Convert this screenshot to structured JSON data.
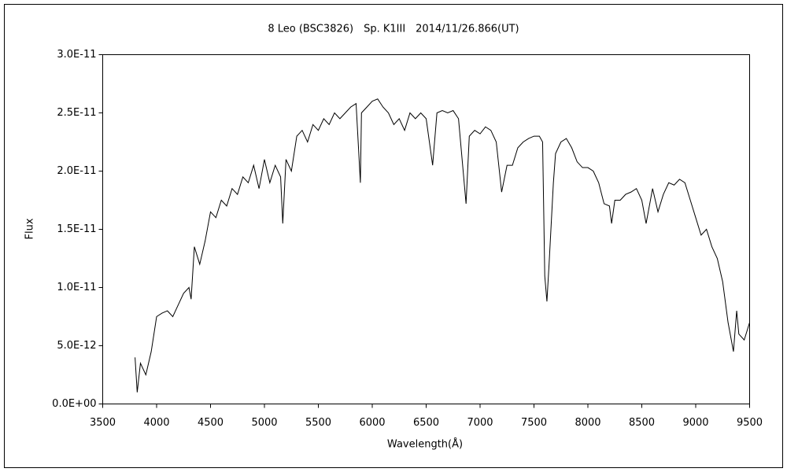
{
  "chart_data": {
    "type": "line",
    "title": "8 Leo (BSC3826)　Sp. K1III　2014/11/26.866(UT)",
    "x_label": "Wavelength(Å)",
    "y_label": "Flux",
    "xlim": [
      3500,
      9500
    ],
    "xticks": [
      3500,
      4000,
      4500,
      5000,
      5500,
      6000,
      6500,
      7000,
      7500,
      8000,
      8500,
      9000,
      9500
    ],
    "ylim": [
      0,
      3e-11
    ],
    "yticks": [
      {
        "value": 0,
        "label": "0.0E+00"
      },
      {
        "value": 5e-12,
        "label": "5.0E-12"
      },
      {
        "value": 1e-11,
        "label": "1.0E-11"
      },
      {
        "value": 1.5e-11,
        "label": "1.5E-11"
      },
      {
        "value": 2e-11,
        "label": "2.0E-11"
      },
      {
        "value": 2.5e-11,
        "label": "2.5E-11"
      },
      {
        "value": 3e-11,
        "label": "3.0E-11"
      }
    ],
    "grid": false,
    "x": [
      3800,
      3820,
      3850,
      3900,
      3950,
      4000,
      4050,
      4100,
      4150,
      4200,
      4250,
      4300,
      4320,
      4350,
      4400,
      4450,
      4500,
      4550,
      4600,
      4650,
      4700,
      4750,
      4800,
      4850,
      4900,
      4950,
      5000,
      5050,
      5100,
      5150,
      5170,
      5200,
      5250,
      5300,
      5350,
      5400,
      5450,
      5500,
      5550,
      5600,
      5650,
      5700,
      5750,
      5800,
      5850,
      5890,
      5900,
      5950,
      6000,
      6050,
      6100,
      6150,
      6200,
      6250,
      6300,
      6350,
      6400,
      6450,
      6500,
      6560,
      6600,
      6650,
      6700,
      6750,
      6800,
      6870,
      6900,
      6950,
      7000,
      7050,
      7100,
      7150,
      7200,
      7250,
      7300,
      7350,
      7400,
      7450,
      7500,
      7550,
      7580,
      7600,
      7620,
      7640,
      7680,
      7700,
      7750,
      7800,
      7850,
      7900,
      7950,
      8000,
      8050,
      8100,
      8150,
      8200,
      8220,
      8250,
      8300,
      8350,
      8400,
      8450,
      8500,
      8540,
      8600,
      8650,
      8700,
      8750,
      8800,
      8850,
      8900,
      8950,
      9000,
      9050,
      9100,
      9150,
      9200,
      9250,
      9300,
      9350,
      9380,
      9400,
      9450,
      9500
    ],
    "series": [
      {
        "name": "Flux",
        "color": "#000000",
        "values": [
          4e-12,
          1e-12,
          3.5e-12,
          2.5e-12,
          4.5e-12,
          7.5e-12,
          7.8e-12,
          8e-12,
          7.5e-12,
          8.5e-12,
          9.5e-12,
          1e-11,
          9e-12,
          1.35e-11,
          1.2e-11,
          1.4e-11,
          1.65e-11,
          1.6e-11,
          1.75e-11,
          1.7e-11,
          1.85e-11,
          1.8e-11,
          1.95e-11,
          1.9e-11,
          2.05e-11,
          1.85e-11,
          2.1e-11,
          1.9e-11,
          2.05e-11,
          1.95e-11,
          1.55e-11,
          2.1e-11,
          2e-11,
          2.3e-11,
          2.35e-11,
          2.25e-11,
          2.4e-11,
          2.35e-11,
          2.45e-11,
          2.4e-11,
          2.5e-11,
          2.45e-11,
          2.5e-11,
          2.55e-11,
          2.58e-11,
          1.9e-11,
          2.5e-11,
          2.55e-11,
          2.6e-11,
          2.62e-11,
          2.55e-11,
          2.5e-11,
          2.4e-11,
          2.45e-11,
          2.35e-11,
          2.5e-11,
          2.45e-11,
          2.5e-11,
          2.45e-11,
          2.05e-11,
          2.5e-11,
          2.52e-11,
          2.5e-11,
          2.52e-11,
          2.45e-11,
          1.72e-11,
          2.3e-11,
          2.35e-11,
          2.32e-11,
          2.38e-11,
          2.35e-11,
          2.25e-11,
          1.82e-11,
          2.05e-11,
          2.05e-11,
          2.2e-11,
          2.25e-11,
          2.28e-11,
          2.3e-11,
          2.3e-11,
          2.25e-11,
          1.1e-11,
          8.8e-12,
          1.2e-11,
          1.9e-11,
          2.15e-11,
          2.25e-11,
          2.28e-11,
          2.2e-11,
          2.08e-11,
          2.03e-11,
          2.03e-11,
          2e-11,
          1.9e-11,
          1.72e-11,
          1.7e-11,
          1.55e-11,
          1.75e-11,
          1.75e-11,
          1.8e-11,
          1.82e-11,
          1.85e-11,
          1.75e-11,
          1.55e-11,
          1.85e-11,
          1.65e-11,
          1.8e-11,
          1.9e-11,
          1.88e-11,
          1.93e-11,
          1.9e-11,
          1.75e-11,
          1.6e-11,
          1.45e-11,
          1.5e-11,
          1.35e-11,
          1.25e-11,
          1.05e-11,
          7e-12,
          4.5e-12,
          8e-12,
          6e-12,
          5.5e-12,
          7e-12
        ]
      }
    ]
  }
}
